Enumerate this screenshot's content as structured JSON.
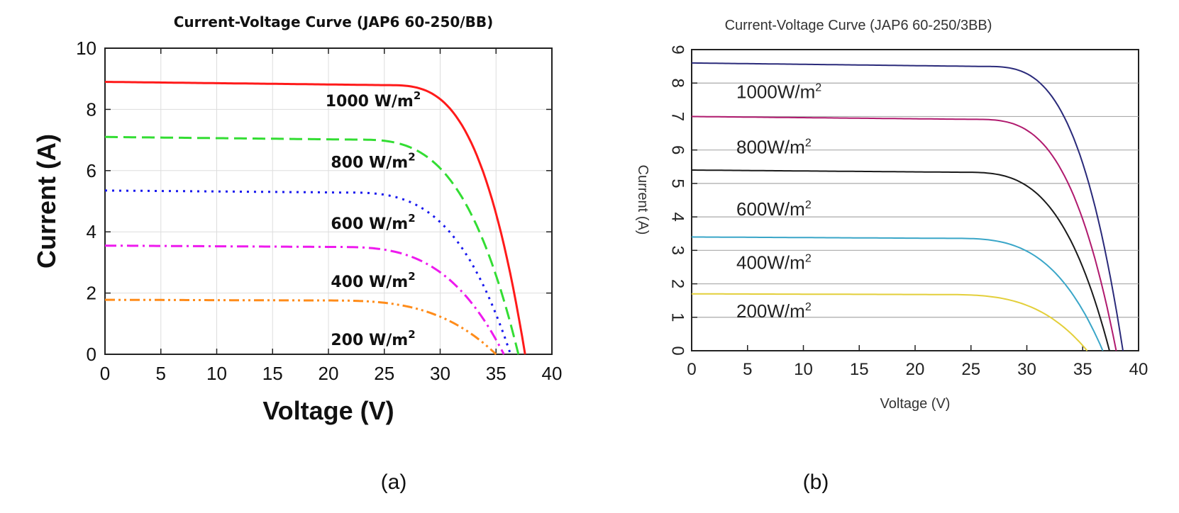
{
  "chart_data": [
    {
      "type": "line",
      "panel_caption": "(a)",
      "title": "Current-Voltage Curve (JAP6 60-250/BB)",
      "xlabel": "Voltage (V)",
      "ylabel": "Current (A)",
      "xlim": [
        0,
        40
      ],
      "ylim": [
        0,
        10
      ],
      "xticks": [
        0,
        5,
        10,
        15,
        20,
        25,
        30,
        35,
        40
      ],
      "yticks": [
        0,
        2,
        4,
        6,
        8,
        10
      ],
      "grid": true,
      "series": [
        {
          "name": "1000 W/m2",
          "label": "1000 W/m",
          "sup": "2",
          "isc": 8.9,
          "voc": 37.6,
          "knee": 25,
          "color": "#ff1a1a",
          "dash": "none",
          "label_at": [
            24,
            8.1
          ]
        },
        {
          "name": "800 W/m2",
          "label": "800 W/m",
          "sup": "2",
          "isc": 7.1,
          "voc": 37.0,
          "knee": 22,
          "color": "#33dd33",
          "dash": "18 8",
          "label_at": [
            24,
            6.1
          ]
        },
        {
          "name": "600 W/m2",
          "label": "600 W/m",
          "sup": "2",
          "isc": 5.35,
          "voc": 36.3,
          "knee": 21,
          "color": "#1a1aee",
          "dash": "3 7",
          "label_at": [
            24,
            4.1
          ]
        },
        {
          "name": "400 W/m2",
          "label": "400 W/m",
          "sup": "2",
          "isc": 3.55,
          "voc": 35.7,
          "knee": 20,
          "color": "#ee1aee",
          "dash": "16 6 3 6",
          "label_at": [
            24,
            2.2
          ]
        },
        {
          "name": "200 W/m2",
          "label": "200 W/m",
          "sup": "2",
          "isc": 1.78,
          "voc": 35.0,
          "knee": 19,
          "color": "#ff8c1a",
          "dash": "14 5 3 5 3 5",
          "label_at": [
            24,
            0.3
          ]
        }
      ]
    },
    {
      "type": "line",
      "panel_caption": "(b)",
      "title": "Current-Voltage Curve (JAP6 60-250/3BB)",
      "xlabel": "Voltage (V)",
      "ylabel": "Current (A)",
      "xlim": [
        0,
        40
      ],
      "ylim": [
        0,
        9
      ],
      "xticks": [
        0,
        5,
        10,
        15,
        20,
        25,
        30,
        35,
        40
      ],
      "yticks": [
        0,
        1,
        2,
        3,
        4,
        5,
        6,
        7,
        8,
        9
      ],
      "grid": "horizontal",
      "series": [
        {
          "name": "1000W/m2",
          "label": "1000W/m",
          "sup": "2",
          "isc": 8.6,
          "voc": 38.6,
          "knee": 26,
          "color": "#2a2a7a",
          "dash": "none",
          "label_at": [
            4,
            7.55
          ]
        },
        {
          "name": "800W/m2",
          "label": "800W/m",
          "sup": "2",
          "isc": 7.0,
          "voc": 38.0,
          "knee": 25,
          "color": "#b01a6e",
          "dash": "none",
          "label_at": [
            4,
            5.9
          ]
        },
        {
          "name": "600W/m2",
          "label": "600W/m",
          "sup": "2",
          "isc": 5.4,
          "voc": 37.4,
          "knee": 24,
          "color": "#1a1a1a",
          "dash": "none",
          "label_at": [
            4,
            4.05
          ]
        },
        {
          "name": "400W/m2",
          "label": "400W/m",
          "sup": "2",
          "isc": 3.4,
          "voc": 36.8,
          "knee": 23,
          "color": "#3aa6c8",
          "dash": "none",
          "label_at": [
            4,
            2.45
          ]
        },
        {
          "name": "200W/m2",
          "label": "200W/m",
          "sup": "2",
          "isc": 1.7,
          "voc": 35.4,
          "knee": 22,
          "color": "#e3cf3a",
          "dash": "none",
          "label_at": [
            4,
            1.0
          ]
        }
      ]
    }
  ]
}
